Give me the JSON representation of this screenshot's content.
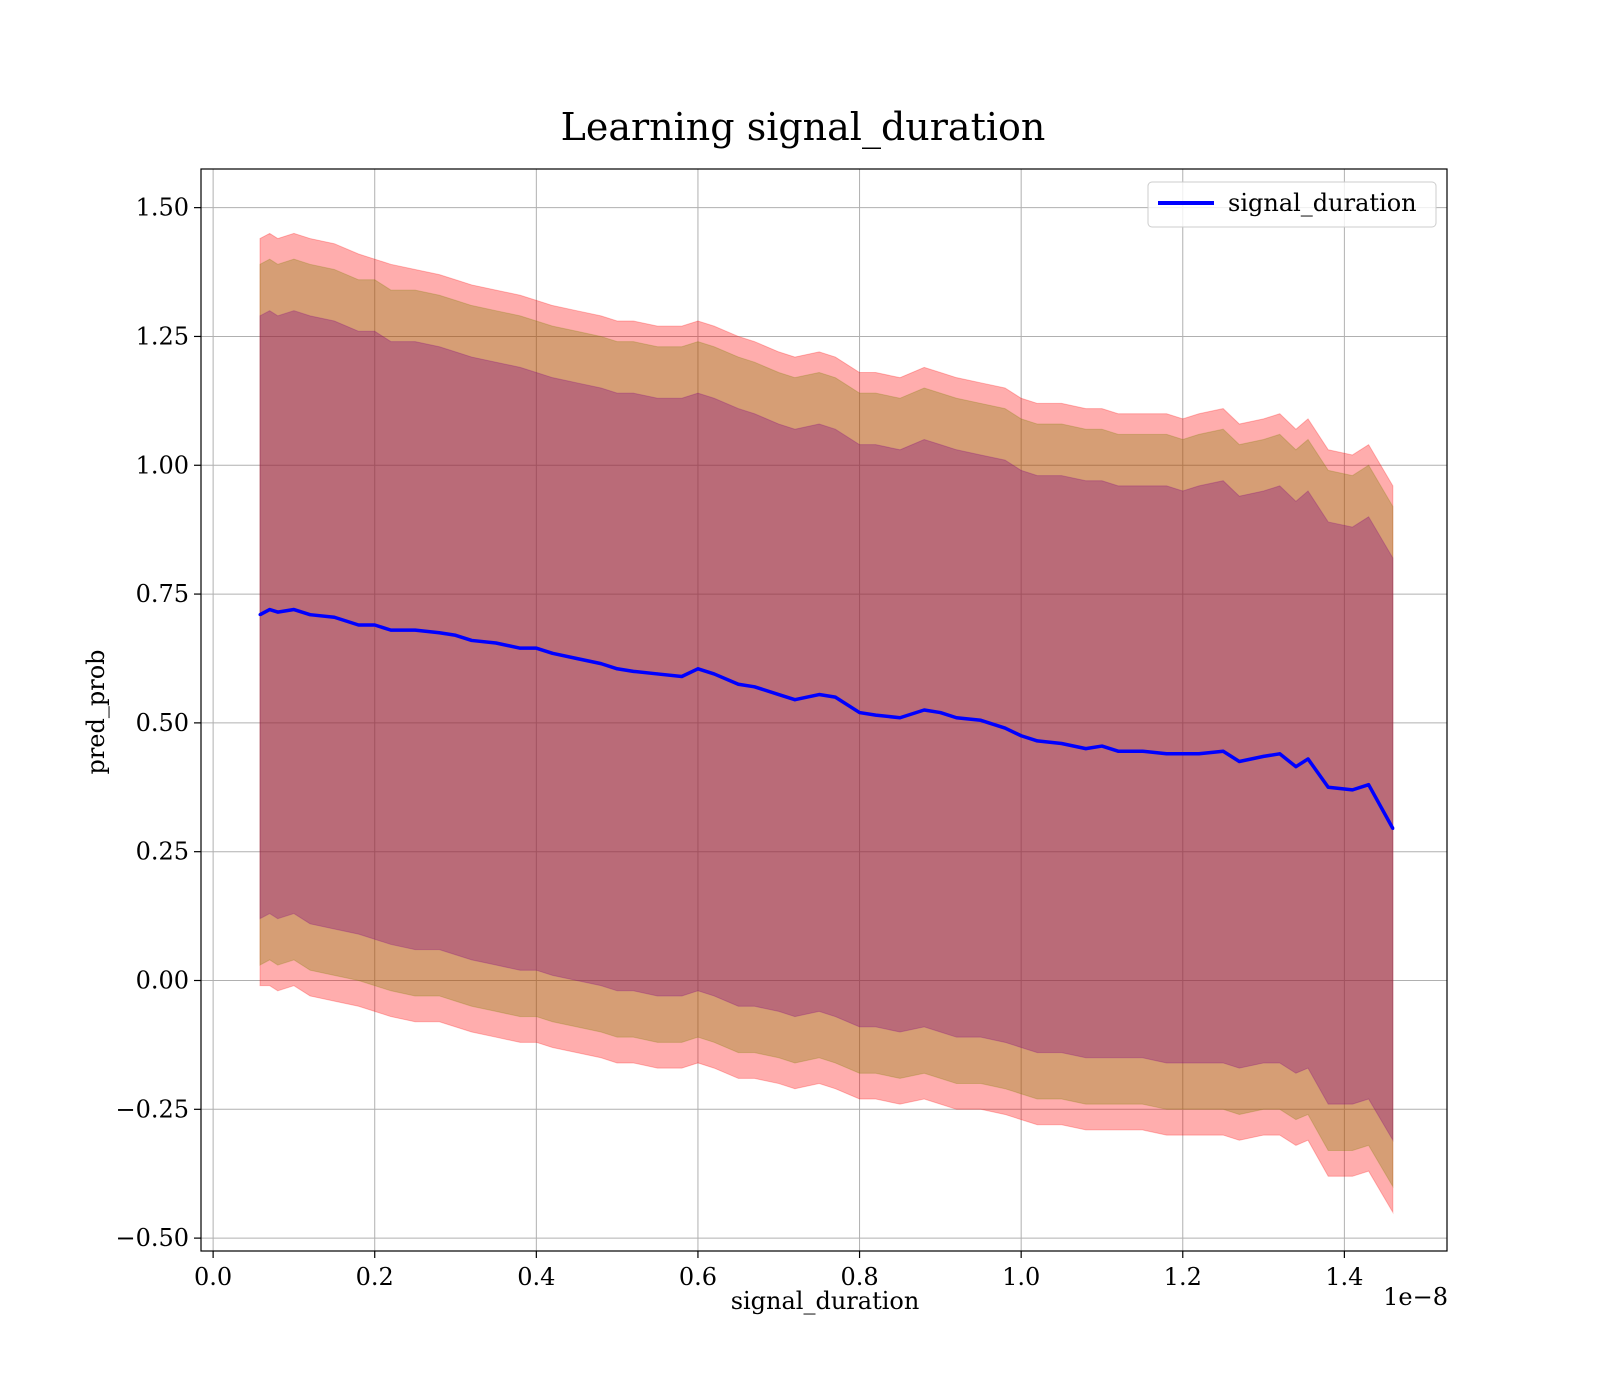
{
  "chart_data": {
    "type": "line",
    "title": "Learning signal_duration",
    "xlabel": "signal_duration",
    "ylabel": "pred_prob",
    "x_offset_label": "1e−8",
    "xlim": [
      -0.015,
      1.527
    ],
    "ylim": [
      -0.525,
      1.575
    ],
    "x_ticks": [
      0.0,
      0.2,
      0.4,
      0.6,
      0.8,
      1.0,
      1.2,
      1.4
    ],
    "x_tick_labels": [
      "0.0",
      "0.2",
      "0.4",
      "0.6",
      "0.8",
      "1.0",
      "1.2",
      "1.4"
    ],
    "y_ticks": [
      -0.5,
      -0.25,
      0.0,
      0.25,
      0.5,
      0.75,
      1.0,
      1.25,
      1.5
    ],
    "y_tick_labels": [
      "−0.50",
      "−0.25",
      "0.00",
      "0.25",
      "0.50",
      "0.75",
      "1.00",
      "1.25",
      "1.50"
    ],
    "grid": true,
    "legend": {
      "position": "upper right",
      "entries": [
        "signal_duration"
      ]
    },
    "series": [
      {
        "name": "signal_duration",
        "color": "#0000ff",
        "x": [
          0.058,
          0.07,
          0.08,
          0.1,
          0.12,
          0.15,
          0.18,
          0.2,
          0.22,
          0.25,
          0.28,
          0.3,
          0.32,
          0.35,
          0.38,
          0.4,
          0.42,
          0.45,
          0.48,
          0.5,
          0.52,
          0.55,
          0.58,
          0.6,
          0.62,
          0.65,
          0.67,
          0.7,
          0.72,
          0.75,
          0.77,
          0.8,
          0.82,
          0.85,
          0.88,
          0.9,
          0.92,
          0.95,
          0.98,
          1.0,
          1.02,
          1.05,
          1.08,
          1.1,
          1.12,
          1.15,
          1.18,
          1.2,
          1.22,
          1.25,
          1.27,
          1.3,
          1.32,
          1.34,
          1.355,
          1.38,
          1.41,
          1.43,
          1.46
        ],
        "values": [
          0.71,
          0.72,
          0.715,
          0.72,
          0.71,
          0.705,
          0.69,
          0.69,
          0.68,
          0.68,
          0.675,
          0.67,
          0.66,
          0.655,
          0.645,
          0.645,
          0.635,
          0.625,
          0.615,
          0.605,
          0.6,
          0.595,
          0.59,
          0.605,
          0.595,
          0.575,
          0.57,
          0.555,
          0.545,
          0.555,
          0.55,
          0.52,
          0.515,
          0.51,
          0.525,
          0.52,
          0.51,
          0.505,
          0.49,
          0.475,
          0.465,
          0.46,
          0.45,
          0.455,
          0.445,
          0.445,
          0.44,
          0.44,
          0.44,
          0.445,
          0.425,
          0.435,
          0.44,
          0.415,
          0.43,
          0.375,
          0.37,
          0.38,
          0.295
        ],
        "bands": [
          {
            "color": "#ff0000",
            "upper": [
              1.44,
              1.45,
              1.44,
              1.45,
              1.44,
              1.43,
              1.41,
              1.4,
              1.39,
              1.38,
              1.37,
              1.36,
              1.35,
              1.34,
              1.33,
              1.32,
              1.31,
              1.3,
              1.29,
              1.28,
              1.28,
              1.27,
              1.27,
              1.28,
              1.27,
              1.25,
              1.24,
              1.22,
              1.21,
              1.22,
              1.21,
              1.18,
              1.18,
              1.17,
              1.19,
              1.18,
              1.17,
              1.16,
              1.15,
              1.13,
              1.12,
              1.12,
              1.11,
              1.11,
              1.1,
              1.1,
              1.1,
              1.09,
              1.1,
              1.11,
              1.08,
              1.09,
              1.1,
              1.07,
              1.09,
              1.03,
              1.02,
              1.04,
              0.96
            ],
            "lower": [
              -0.01,
              -0.01,
              -0.02,
              -0.01,
              -0.03,
              -0.04,
              -0.05,
              -0.06,
              -0.07,
              -0.08,
              -0.08,
              -0.09,
              -0.1,
              -0.11,
              -0.12,
              -0.12,
              -0.13,
              -0.14,
              -0.15,
              -0.16,
              -0.16,
              -0.17,
              -0.17,
              -0.16,
              -0.17,
              -0.19,
              -0.19,
              -0.2,
              -0.21,
              -0.2,
              -0.21,
              -0.23,
              -0.23,
              -0.24,
              -0.23,
              -0.24,
              -0.25,
              -0.25,
              -0.26,
              -0.27,
              -0.28,
              -0.28,
              -0.29,
              -0.29,
              -0.29,
              -0.29,
              -0.3,
              -0.3,
              -0.3,
              -0.3,
              -0.31,
              -0.3,
              -0.3,
              -0.32,
              -0.31,
              -0.38,
              -0.38,
              -0.37,
              -0.45
            ]
          },
          {
            "color": "#808000",
            "upper": [
              1.39,
              1.4,
              1.39,
              1.4,
              1.39,
              1.38,
              1.36,
              1.36,
              1.34,
              1.34,
              1.33,
              1.32,
              1.31,
              1.3,
              1.29,
              1.28,
              1.27,
              1.26,
              1.25,
              1.24,
              1.24,
              1.23,
              1.23,
              1.24,
              1.23,
              1.21,
              1.2,
              1.18,
              1.17,
              1.18,
              1.17,
              1.14,
              1.14,
              1.13,
              1.15,
              1.14,
              1.13,
              1.12,
              1.11,
              1.09,
              1.08,
              1.08,
              1.07,
              1.07,
              1.06,
              1.06,
              1.06,
              1.05,
              1.06,
              1.07,
              1.04,
              1.05,
              1.06,
              1.03,
              1.05,
              0.99,
              0.98,
              1.0,
              0.92
            ],
            "lower": [
              0.03,
              0.04,
              0.03,
              0.04,
              0.02,
              0.01,
              0.0,
              -0.01,
              -0.02,
              -0.03,
              -0.03,
              -0.04,
              -0.05,
              -0.06,
              -0.07,
              -0.07,
              -0.08,
              -0.09,
              -0.1,
              -0.11,
              -0.11,
              -0.12,
              -0.12,
              -0.11,
              -0.12,
              -0.14,
              -0.14,
              -0.15,
              -0.16,
              -0.15,
              -0.16,
              -0.18,
              -0.18,
              -0.19,
              -0.18,
              -0.19,
              -0.2,
              -0.2,
              -0.21,
              -0.22,
              -0.23,
              -0.23,
              -0.24,
              -0.24,
              -0.24,
              -0.24,
              -0.25,
              -0.25,
              -0.25,
              -0.25,
              -0.26,
              -0.25,
              -0.25,
              -0.27,
              -0.26,
              -0.33,
              -0.33,
              -0.32,
              -0.4
            ]
          },
          {
            "color": "#800080",
            "upper": [
              1.29,
              1.3,
              1.29,
              1.3,
              1.29,
              1.28,
              1.26,
              1.26,
              1.24,
              1.24,
              1.23,
              1.22,
              1.21,
              1.2,
              1.19,
              1.18,
              1.17,
              1.16,
              1.15,
              1.14,
              1.14,
              1.13,
              1.13,
              1.14,
              1.13,
              1.11,
              1.1,
              1.08,
              1.07,
              1.08,
              1.07,
              1.04,
              1.04,
              1.03,
              1.05,
              1.04,
              1.03,
              1.02,
              1.01,
              0.99,
              0.98,
              0.98,
              0.97,
              0.97,
              0.96,
              0.96,
              0.96,
              0.95,
              0.96,
              0.97,
              0.94,
              0.95,
              0.96,
              0.93,
              0.95,
              0.89,
              0.88,
              0.9,
              0.82
            ],
            "lower": [
              0.12,
              0.13,
              0.12,
              0.13,
              0.11,
              0.1,
              0.09,
              0.08,
              0.07,
              0.06,
              0.06,
              0.05,
              0.04,
              0.03,
              0.02,
              0.02,
              0.01,
              0.0,
              -0.01,
              -0.02,
              -0.02,
              -0.03,
              -0.03,
              -0.02,
              -0.03,
              -0.05,
              -0.05,
              -0.06,
              -0.07,
              -0.06,
              -0.07,
              -0.09,
              -0.09,
              -0.1,
              -0.09,
              -0.1,
              -0.11,
              -0.11,
              -0.12,
              -0.13,
              -0.14,
              -0.14,
              -0.15,
              -0.15,
              -0.15,
              -0.15,
              -0.16,
              -0.16,
              -0.16,
              -0.16,
              -0.17,
              -0.16,
              -0.16,
              -0.18,
              -0.17,
              -0.24,
              -0.24,
              -0.23,
              -0.31
            ]
          }
        ]
      }
    ]
  }
}
